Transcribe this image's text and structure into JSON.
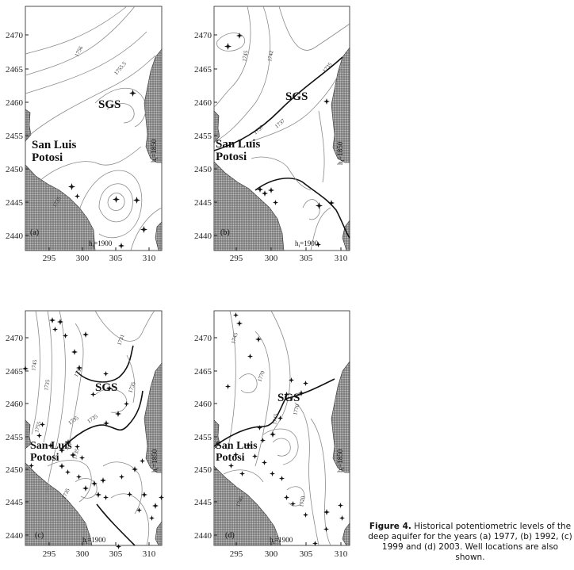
{
  "axes": {
    "x_ticks": [
      "295",
      "300",
      "305",
      "310"
    ],
    "y_ticks": [
      "2470",
      "2465",
      "2460",
      "2455",
      "2450",
      "2445",
      "2440"
    ]
  },
  "places": {
    "sgs": "SGS",
    "san_luis": "San Luis",
    "potosi": "Potosi"
  },
  "head_labels": {
    "east": "h",
    "east_sub": "i",
    "east_value": "=1850",
    "south": "h",
    "south_sub": "i",
    "south_value": "=1900"
  },
  "panels": [
    {
      "letter": "(a)",
      "contour_labels": [
        "1756",
        "1755.5",
        "1735"
      ]
    },
    {
      "letter": "(b)",
      "contour_labels": [
        "1745",
        "1742",
        "1737",
        "1737",
        "1735"
      ]
    },
    {
      "letter": "(c)",
      "contour_labels": [
        "1745",
        "1735",
        "1733",
        "1731",
        "1735",
        "1735",
        "1735",
        "1755",
        "1735",
        "1735"
      ]
    },
    {
      "letter": "(d)",
      "contour_labels": [
        "1745",
        "1770",
        "1745",
        "1770",
        "1745",
        "1770"
      ]
    }
  ],
  "caption": {
    "figure_label": "Figure 4.",
    "text": " Historical potentiometric levels of the deep aquifer for the years (a) 1977, (b) 1992, (c) 1999 and (d) 2003. Well locations are also shown."
  }
}
